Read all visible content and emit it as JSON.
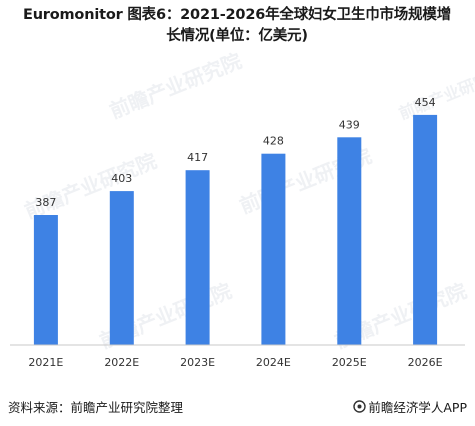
{
  "title_line1": "Euromonitor 图表6：2021-2026年全球妇女卫生巾市场规模增",
  "title_line2": "长情况(单位：亿美元)",
  "footer": {
    "source": "资料来源：前瞻产业研究院整理",
    "brand": "前瞻经济学人APP",
    "brand_icon": "circle-logo-icon"
  },
  "watermark_text": "前瞻产业研究院",
  "colors": {
    "bar": "#3E82E4",
    "axis": "#c8c8c8",
    "text": "#333333"
  },
  "chart_data": {
    "type": "bar",
    "categories": [
      "2021E",
      "2022E",
      "2023E",
      "2024E",
      "2025E",
      "2026E"
    ],
    "values": [
      387,
      403,
      417,
      428,
      439,
      454
    ],
    "title": "Euromonitor 图表6：2021-2026年全球妇女卫生巾市场规模增长情况(单位：亿美元)",
    "xlabel": "",
    "ylabel": "",
    "ylim": [
      300,
      460
    ],
    "grid": false,
    "legend": "none",
    "data_labels": true
  }
}
